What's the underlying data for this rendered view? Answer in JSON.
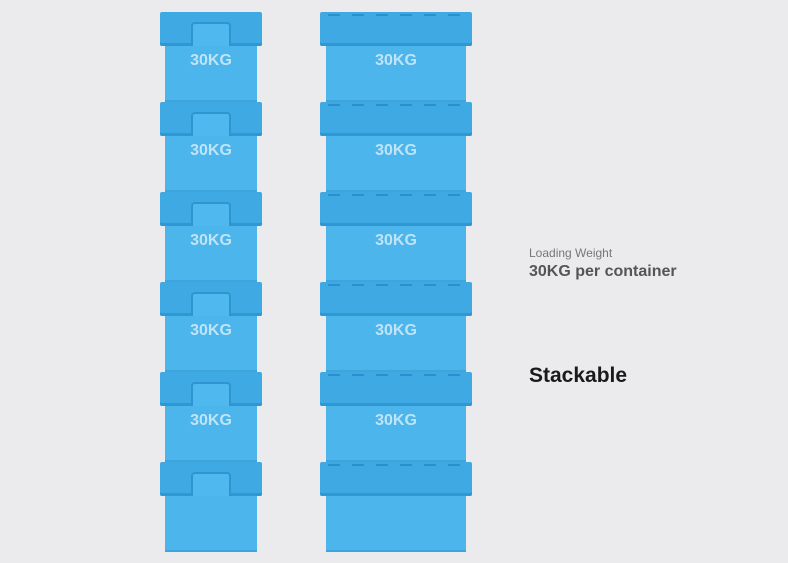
{
  "left_stack": {
    "labels": [
      "30KG",
      "30KG",
      "30KG",
      "30KG",
      "30KG",
      ""
    ]
  },
  "right_stack": {
    "labels": [
      "30KG",
      "30KG",
      "30KG",
      "30KG",
      "30KG",
      ""
    ]
  },
  "info": {
    "caption": "Loading Weight",
    "weight": "30KG per container",
    "feature": "Stackable"
  },
  "colors": {
    "background": "#ebebed",
    "container": "#4cb5ec",
    "lid": "#3fa9e4",
    "label": "#bfe3f7"
  }
}
